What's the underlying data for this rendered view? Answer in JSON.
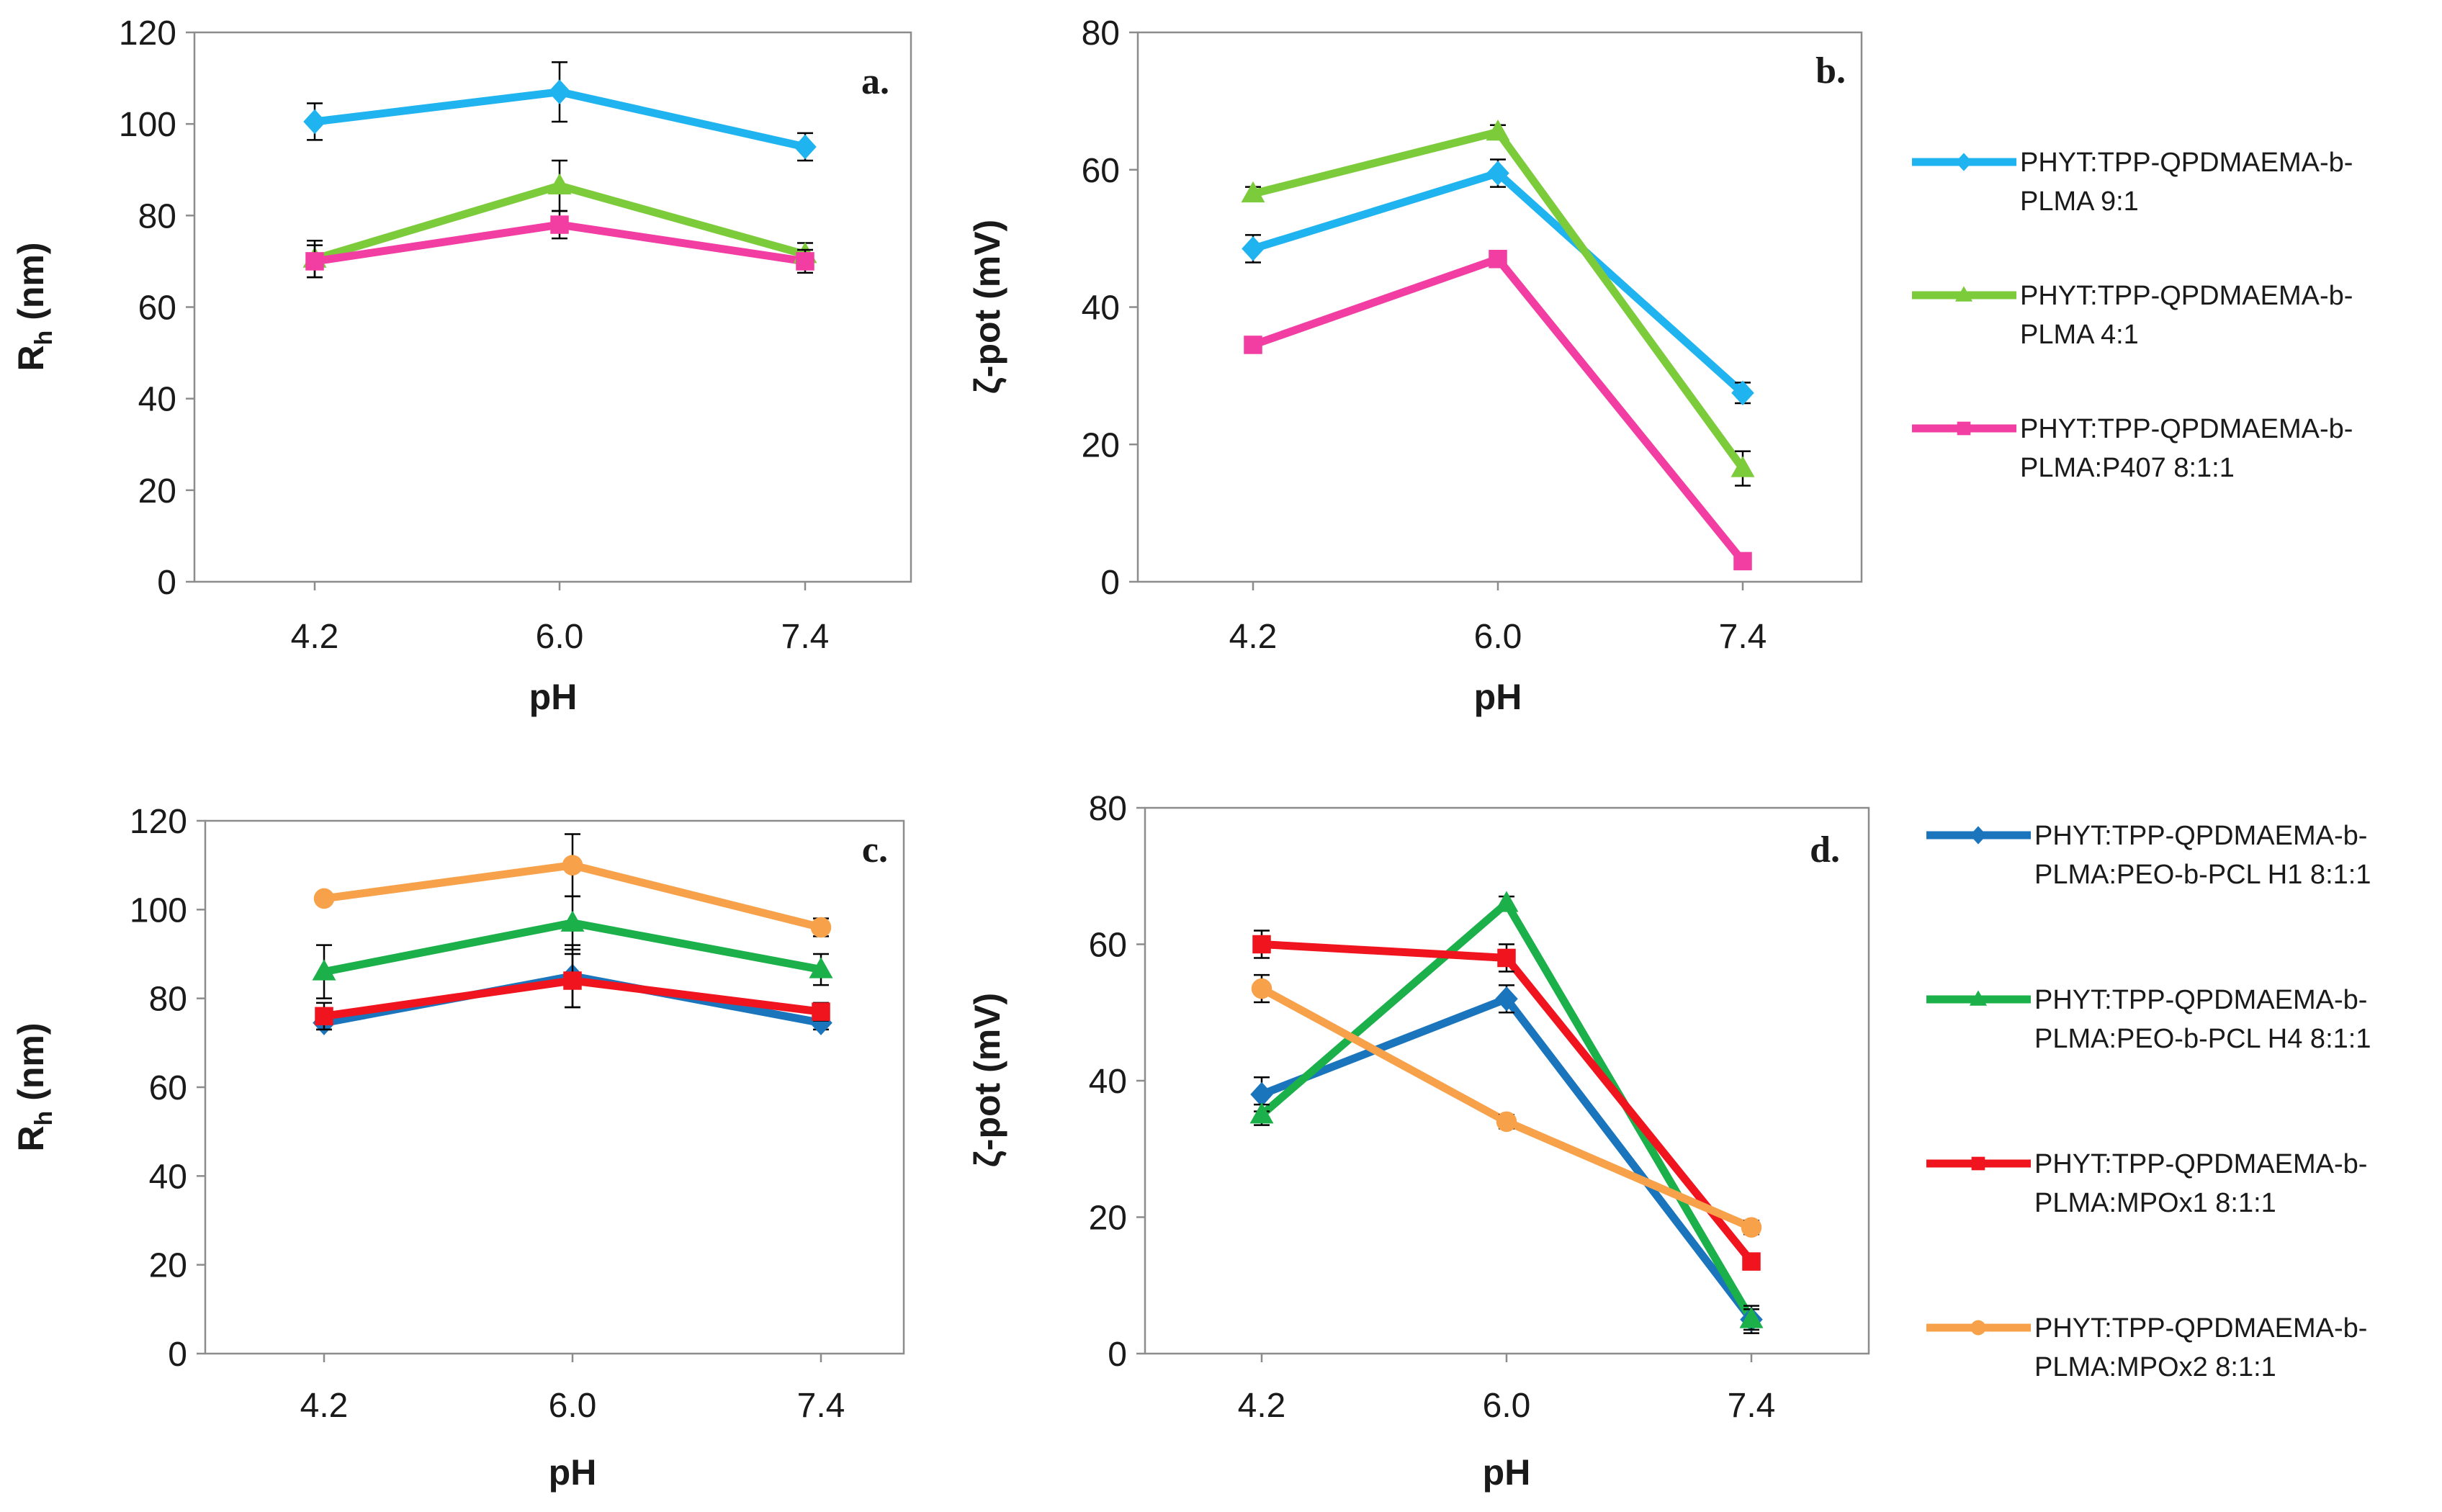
{
  "chart_data": [
    {
      "id": "a",
      "type": "line",
      "panel_label": "a.",
      "xlabel": "pH",
      "ylabel_main": "R",
      "ylabel_sub": "h",
      "ylabel_tail": " (nm)",
      "categories": [
        "4.2",
        "6.0",
        "7.4"
      ],
      "ylim": [
        0,
        120
      ],
      "yticks": [
        "0",
        "20",
        "40",
        "60",
        "80",
        "100",
        "120"
      ],
      "series": [
        {
          "name": "PHYT:TPP-QPDMAEMA-b-PLMA 9:1",
          "color": "#1fb4f0",
          "marker": "diamond",
          "values": [
            100.5,
            107,
            95
          ],
          "errors": [
            4,
            6.5,
            3
          ]
        },
        {
          "name": "PHYT:TPP-QPDMAEMA-b-PLMA 4:1",
          "color": "#7ccb3b",
          "marker": "triangle",
          "values": [
            70.5,
            86.5,
            71.5
          ],
          "errors": [
            4,
            5.5,
            2.5
          ]
        },
        {
          "name": "PHYT:TPP-QPDMAEMA-b-PLMA:P407 8:1:1",
          "color": "#f23ea2",
          "marker": "square",
          "values": [
            70,
            78,
            70
          ],
          "errors": [
            3.5,
            3,
            2.5
          ]
        }
      ]
    },
    {
      "id": "b",
      "type": "line",
      "panel_label": "b.",
      "xlabel": "pH",
      "ylabel_main": "ζ-pot (mV)",
      "ylabel_sub": "",
      "ylabel_tail": "",
      "categories": [
        "4.2",
        "6.0",
        "7.4"
      ],
      "ylim": [
        0,
        80
      ],
      "yticks": [
        "0",
        "20",
        "40",
        "60",
        "80"
      ],
      "series": [
        {
          "name": "PHYT:TPP-QPDMAEMA-b-PLMA 9:1",
          "color": "#1fb4f0",
          "marker": "diamond",
          "values": [
            48.5,
            59.5,
            27.5
          ],
          "errors": [
            2,
            2,
            1.5
          ]
        },
        {
          "name": "PHYT:TPP-QPDMAEMA-b-PLMA 4:1",
          "color": "#7ccb3b",
          "marker": "triangle",
          "values": [
            56.5,
            65.5,
            16.5
          ],
          "errors": [
            1,
            1,
            2.5
          ]
        },
        {
          "name": "PHYT:TPP-QPDMAEMA-b-PLMA:P407 8:1:1",
          "color": "#f23ea2",
          "marker": "square",
          "values": [
            34.5,
            47,
            3
          ],
          "errors": [
            1,
            1,
            1
          ]
        }
      ]
    },
    {
      "id": "c",
      "type": "line",
      "panel_label": "c.",
      "xlabel": "pH",
      "ylabel_main": "R",
      "ylabel_sub": "h",
      "ylabel_tail": " (nm)",
      "categories": [
        "4.2",
        "6.0",
        "7.4"
      ],
      "ylim": [
        0,
        120
      ],
      "yticks": [
        "0",
        "20",
        "40",
        "60",
        "80",
        "100",
        "120"
      ],
      "series": [
        {
          "name": "PHYT:TPP-QPDMAEMA-b-PLMA:PEO-b-PCL H1 8:1:1",
          "color": "#1b75bc",
          "marker": "diamond",
          "values": [
            74.5,
            85,
            74.5
          ],
          "errors": [
            1.5,
            7,
            1.5
          ]
        },
        {
          "name": "PHYT:TPP-QPDMAEMA-b-PLMA:PEO-b-PCL H4 8:1:1",
          "color": "#1bb04a",
          "marker": "triangle",
          "values": [
            86,
            97,
            86.5
          ],
          "errors": [
            6,
            6,
            3.5
          ]
        },
        {
          "name": "PHYT:TPP-QPDMAEMA-b-PLMA:MPOx1 8:1:1",
          "color": "#f0141e",
          "marker": "square",
          "values": [
            76,
            84,
            77
          ],
          "errors": [
            3,
            6,
            2
          ]
        },
        {
          "name": "PHYT:TPP-QPDMAEMA-b-PLMA:MPOx2 8:1:1",
          "color": "#f7a14a",
          "marker": "circle",
          "values": [
            102.5,
            110,
            96
          ],
          "errors": [
            1,
            7,
            2
          ]
        }
      ]
    },
    {
      "id": "d",
      "type": "line",
      "panel_label": "d.",
      "xlabel": "pH",
      "ylabel_main": "ζ-pot (mV)",
      "ylabel_sub": "",
      "ylabel_tail": "",
      "categories": [
        "4.2",
        "6.0",
        "7.4"
      ],
      "ylim": [
        0,
        80
      ],
      "yticks": [
        "0",
        "20",
        "40",
        "60",
        "80"
      ],
      "series": [
        {
          "name": "PHYT:TPP-QPDMAEMA-b-PLMA:PEO-b-PCL H1 8:1:1",
          "color": "#1b75bc",
          "marker": "diamond",
          "values": [
            38,
            52,
            5
          ],
          "errors": [
            2.5,
            2,
            2
          ]
        },
        {
          "name": "PHYT:TPP-QPDMAEMA-b-PLMA:PEO-b-PCL H4 8:1:1",
          "color": "#1bb04a",
          "marker": "triangle",
          "values": [
            35,
            66,
            5
          ],
          "errors": [
            1.5,
            1,
            1.5
          ]
        },
        {
          "name": "PHYT:TPP-QPDMAEMA-b-PLMA:MPOx1 8:1:1",
          "color": "#f0141e",
          "marker": "square",
          "values": [
            60,
            58,
            13.5
          ],
          "errors": [
            2,
            2,
            1
          ]
        },
        {
          "name": "PHYT:TPP-QPDMAEMA-b-PLMA:MPOx2 8:1:1",
          "color": "#f7a14a",
          "marker": "circle",
          "values": [
            53.5,
            34,
            18.5
          ],
          "errors": [
            2,
            1,
            1
          ]
        }
      ]
    }
  ],
  "legends": {
    "top": [
      {
        "line1": "PHYT:TPP-QPDMAEMA-b-",
        "line2": "PLMA 9:1",
        "color": "#1fb4f0",
        "marker": "diamond"
      },
      {
        "line1": "PHYT:TPP-QPDMAEMA-b-",
        "line2": "PLMA 4:1",
        "color": "#7ccb3b",
        "marker": "triangle"
      },
      {
        "line1": "PHYT:TPP-QPDMAEMA-b-",
        "line2": "PLMA:P407 8:1:1",
        "color": "#f23ea2",
        "marker": "square"
      }
    ],
    "bottom": [
      {
        "line1": "PHYT:TPP-QPDMAEMA-b-",
        "line2": "PLMA:PEO-b-PCL H1 8:1:1",
        "color": "#1b75bc",
        "marker": "diamond"
      },
      {
        "line1": "PHYT:TPP-QPDMAEMA-b-",
        "line2": "PLMA:PEO-b-PCL H4 8:1:1",
        "color": "#1bb04a",
        "marker": "triangle"
      },
      {
        "line1": "PHYT:TPP-QPDMAEMA-b-",
        "line2": "PLMA:MPOx1 8:1:1",
        "color": "#f0141e",
        "marker": "square"
      },
      {
        "line1": "PHYT:TPP-QPDMAEMA-b-",
        "line2": "PLMA:MPOx2 8:1:1",
        "color": "#f7a14a",
        "marker": "circle"
      }
    ]
  }
}
